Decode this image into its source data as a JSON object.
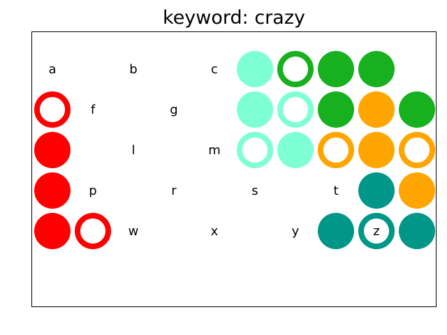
{
  "title": "keyword: crazy",
  "colors": {
    "red": "#ff0000",
    "aquamarine": "#7fffd4",
    "green": "#17b01f",
    "orange": "#ffa500",
    "teal": "#009688"
  },
  "board": {
    "rows": [
      [
        {
          "letter": "a"
        },
        {
          "letter": ""
        },
        {
          "letter": "b"
        },
        {
          "letter": ""
        },
        {
          "letter": "c"
        },
        {
          "letter": "",
          "color": "aquamarine",
          "style": "filled"
        },
        {
          "letter": "",
          "color": "green",
          "style": "ring"
        },
        {
          "letter": "",
          "color": "green",
          "style": "filled"
        },
        {
          "letter": "",
          "color": "green",
          "style": "filled"
        }
      ],
      [
        {
          "letter": "",
          "color": "red",
          "style": "ring"
        },
        {
          "letter": "f"
        },
        {
          "letter": ""
        },
        {
          "letter": "g"
        },
        {
          "letter": ""
        },
        {
          "letter": "",
          "color": "aquamarine",
          "style": "filled"
        },
        {
          "letter": "",
          "color": "aquamarine",
          "style": "ring"
        },
        {
          "letter": "",
          "color": "green",
          "style": "filled"
        },
        {
          "letter": "",
          "color": "orange",
          "style": "filled"
        },
        {
          "letter": "",
          "color": "green",
          "style": "filled"
        }
      ],
      [
        {
          "letter": "",
          "color": "red",
          "style": "filled"
        },
        {
          "letter": ""
        },
        {
          "letter": "l"
        },
        {
          "letter": ""
        },
        {
          "letter": "m"
        },
        {
          "letter": "",
          "color": "aquamarine",
          "style": "ring"
        },
        {
          "letter": "",
          "color": "aquamarine",
          "style": "filled"
        },
        {
          "letter": "",
          "color": "orange",
          "style": "ring"
        },
        {
          "letter": "",
          "color": "orange",
          "style": "filled"
        },
        {
          "letter": "",
          "color": "orange",
          "style": "ring"
        }
      ],
      [
        {
          "letter": "",
          "color": "red",
          "style": "filled"
        },
        {
          "letter": "p"
        },
        {
          "letter": ""
        },
        {
          "letter": "r"
        },
        {
          "letter": ""
        },
        {
          "letter": "s"
        },
        {
          "letter": ""
        },
        {
          "letter": "t"
        },
        {
          "letter": "",
          "color": "teal",
          "style": "filled"
        },
        {
          "letter": "",
          "color": "orange",
          "style": "filled"
        }
      ],
      [
        {
          "letter": "",
          "color": "red",
          "style": "filled"
        },
        {
          "letter": "",
          "color": "red",
          "style": "ring"
        },
        {
          "letter": "w"
        },
        {
          "letter": ""
        },
        {
          "letter": "x"
        },
        {
          "letter": ""
        },
        {
          "letter": "y"
        },
        {
          "letter": "",
          "color": "teal",
          "style": "filled"
        },
        {
          "letter": "z",
          "color": "teal",
          "style": "ring"
        },
        {
          "letter": "",
          "color": "teal",
          "style": "filled"
        }
      ]
    ]
  }
}
